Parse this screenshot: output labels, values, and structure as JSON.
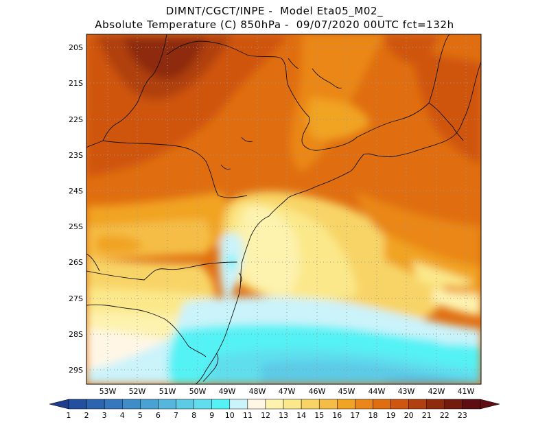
{
  "title": {
    "line1": "DIMNT/CGCT/INPE -  Model Eta05_M02_",
    "line2": "Absolute Temperature (C) 850hPa -  09/07/2020 00UTC fct=132h"
  },
  "axes": {
    "lat_labels": [
      "20S",
      "21S",
      "22S",
      "23S",
      "24S",
      "25S",
      "26S",
      "27S",
      "28S",
      "29S"
    ],
    "lon_labels": [
      "53W",
      "52W",
      "51W",
      "50W",
      "49W",
      "48W",
      "47W",
      "46W",
      "45W",
      "44W",
      "43W",
      "42W",
      "41W"
    ]
  },
  "colorbar": {
    "labels": [
      "1",
      "2",
      "3",
      "4",
      "5",
      "6",
      "7",
      "8",
      "9",
      "10",
      "11",
      "12",
      "13",
      "14",
      "15",
      "16",
      "17",
      "18",
      "19",
      "20",
      "21",
      "22",
      "23"
    ],
    "colors": [
      "#1f3d8c",
      "#22509e",
      "#2b65b0",
      "#3578bd",
      "#3f8cc9",
      "#48a2d4",
      "#55b7de",
      "#5bcbe6",
      "#5fdfee",
      "#55f2f5",
      "#cbf3fa",
      "#fff6e6",
      "#fdf2ae",
      "#fbe88a",
      "#f8d466",
      "#f5bd45",
      "#f1a324",
      "#ea8718",
      "#e06e10",
      "#cf5510",
      "#b04010",
      "#8e2b0c",
      "#741b10",
      "#5e0e12"
    ]
  },
  "legend_colors": {
    "ocean_cold": "#55f2f5",
    "warm_max": "#8e2b0c"
  }
}
